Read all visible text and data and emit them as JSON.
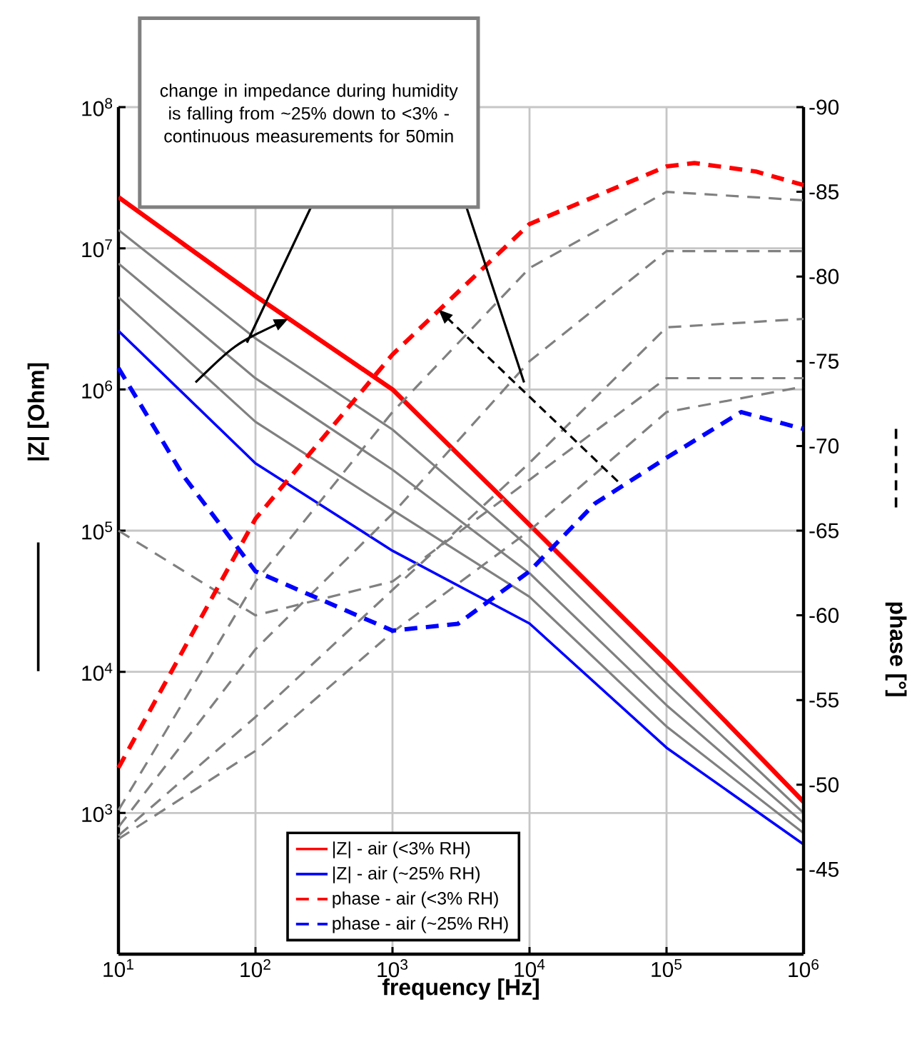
{
  "chart_data": {
    "type": "line",
    "xlabel": "frequency [Hz]",
    "ylabel": "|Z| [Ohm]",
    "y2label": "phase [°]",
    "annotations": [
      "change in impedance during humidity is falling from ~25% down to <3% - continuous measurements for 50min"
    ],
    "xlim": [
      10,
      1000000
    ],
    "ylim": [
      100,
      100000000
    ],
    "y2lim": [
      -40,
      -90
    ],
    "xticks": [
      {
        "value": 10,
        "label": "10$^{1}$"
      },
      {
        "value": 100,
        "label": "10$^{2}$"
      },
      {
        "value": 1000,
        "label": "10$^{3}$"
      },
      {
        "value": 10000,
        "label": "10$^{4}$"
      },
      {
        "value": 100000,
        "label": "10$^{5}$"
      },
      {
        "value": 1000000,
        "label": "10$^{6}$"
      }
    ],
    "yticks": [
      {
        "value": 1000,
        "label": "10$^{3}$"
      },
      {
        "value": 10000,
        "label": "10$^{4}$"
      },
      {
        "value": 100000,
        "label": "10$^{5}$"
      },
      {
        "value": 1000000,
        "label": "10$^{6}$"
      },
      {
        "value": 10000000,
        "label": "10$^{7}$"
      },
      {
        "value": 100000000,
        "label": "10$^{8}$"
      }
    ],
    "y2ticks": [
      -45,
      -50,
      -55,
      -60,
      -65,
      -70,
      -75,
      -80,
      -85,
      -90
    ],
    "log": "xy",
    "grid": true,
    "legend": "bottom",
    "marker": "none",
    "series": [
      {
        "name": "|Z| - air (<3% RH)",
        "color": "#ff0000",
        "line_style": "solid",
        "x": [
          10,
          100,
          1000,
          10000,
          100000,
          1000000
        ],
        "values": [
          23000000,
          4600000,
          1000000,
          110000,
          12000,
          1200
        ]
      },
      {
        "name": "|Z| - air (~25% RH)",
        "color": "#0000ff",
        "line_style": "solid",
        "x": [
          10,
          100,
          1000,
          10000,
          100000,
          1000000
        ],
        "values": [
          2600000,
          300000,
          72000,
          22000,
          2900,
          600
        ]
      },
      {
        "color": "#808080",
        "line_style": "solid",
        "x": [
          10,
          100,
          1000,
          10000,
          100000,
          1000000
        ],
        "values": [
          13500000,
          2300000,
          520000,
          76000,
          8300,
          1000
        ]
      },
      {
        "color": "#808080",
        "line_style": "solid",
        "x": [
          10,
          100,
          1000,
          10000,
          100000,
          1000000
        ],
        "values": [
          7800000,
          1200000,
          270000,
          50000,
          5800,
          850
        ]
      },
      {
        "color": "#808080",
        "line_style": "solid",
        "x": [
          10,
          100,
          1000,
          10000,
          100000,
          1000000
        ],
        "values": [
          4500000,
          590000,
          140000,
          34000,
          4100,
          720
        ]
      },
      {
        "name": "phase - air (<3% RH)",
        "color": "#ff0000",
        "line_style": "dashed",
        "axis": "y2",
        "x": [
          10,
          100,
          1000,
          10000,
          100000,
          160000,
          450000,
          1000000
        ],
        "values": [
          -51,
          -65.7,
          -75.4,
          -83.1,
          -86.5,
          -86.7,
          -86.2,
          -85.4
        ]
      },
      {
        "name": "phase - air (~25% RH)",
        "color": "#0000ff",
        "line_style": "dashed",
        "axis": "y2",
        "x": [
          10,
          30,
          100,
          1000,
          3000,
          10000,
          30000,
          100000,
          350000,
          1000000
        ],
        "values": [
          -74.6,
          -68.2,
          -62.6,
          -59.1,
          -59.5,
          -62.6,
          -66.6,
          -69.3,
          -72,
          -71
        ]
      },
      {
        "color": "#808080",
        "line_style": "dashed",
        "axis": "y2",
        "x": [
          10,
          100,
          1000,
          10000,
          100000,
          1000000
        ],
        "values": [
          -48.5,
          -62,
          -72,
          -80.5,
          -85,
          -84.5
        ]
      },
      {
        "color": "#808080",
        "line_style": "dashed",
        "axis": "y2",
        "x": [
          10,
          100,
          1000,
          10000,
          100000,
          1000000
        ],
        "values": [
          -47.5,
          -58,
          -66,
          -75,
          -81.5,
          -81.5
        ]
      },
      {
        "color": "#808080",
        "line_style": "dashed",
        "axis": "y2",
        "x": [
          10,
          100,
          1000,
          10000,
          100000,
          1000000
        ],
        "values": [
          -47,
          -54,
          -61.5,
          -69,
          -77,
          -77.5
        ]
      },
      {
        "color": "#808080",
        "line_style": "dashed",
        "axis": "y2",
        "x": [
          10,
          100,
          1000,
          10000,
          100000,
          1000000
        ],
        "values": [
          -46.8,
          -52,
          -59,
          -65,
          -72,
          -73.5
        ]
      },
      {
        "color": "#808080",
        "line_style": "dashed",
        "axis": "y2",
        "x": [
          10,
          100,
          1000,
          10000,
          100000,
          1000000
        ],
        "values": [
          -65,
          -60,
          -62,
          -68,
          -74,
          -74
        ]
      }
    ]
  }
}
